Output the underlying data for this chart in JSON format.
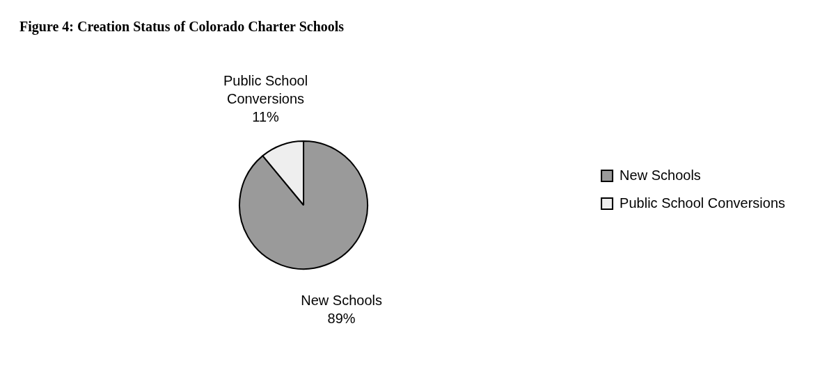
{
  "chart_data": {
    "type": "pie",
    "title": "Figure 4: Creation Status of Colorado Charter Schools",
    "categories": [
      "New Schools",
      "Public School Conversions"
    ],
    "values": [
      89,
      11
    ],
    "colors": [
      "#9a9a9a",
      "#eeeeee"
    ],
    "value_labels": [
      "89%",
      "11%"
    ],
    "legend": "right"
  }
}
